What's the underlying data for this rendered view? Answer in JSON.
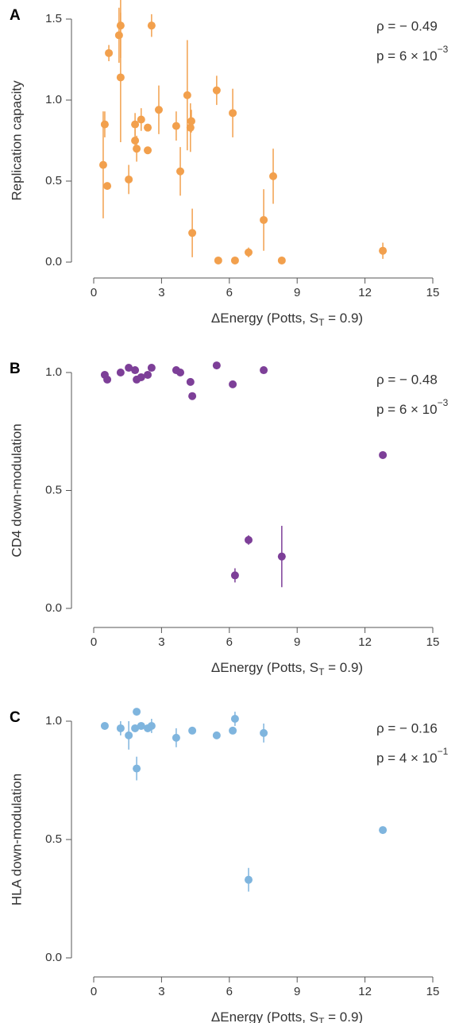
{
  "chart_data": [
    {
      "type": "scatter",
      "panel_label": "A",
      "ylabel": "Replication capacity",
      "xlabel": [
        "ΔEnergy (Potts, S",
        "T",
        " = 0.9)"
      ],
      "annotations": {
        "rho": "ρ = − 0.49",
        "p": "p = 6 × 10",
        "p_exp": "−3"
      },
      "xlim": [
        0,
        15
      ],
      "ylim": [
        0,
        1.5
      ],
      "xticks": [
        0,
        3,
        6,
        9,
        12,
        15
      ],
      "yticks": [
        {
          "value": 0,
          "label": "0.0"
        },
        {
          "value": 0.5,
          "label": "0.5"
        },
        {
          "value": 1,
          "label": "1.0"
        },
        {
          "value": 1.5,
          "label": "1.5"
        }
      ],
      "series": [
        {
          "color": "#f2a04d",
          "x": [
            0.42,
            0.49,
            0.6,
            0.67,
            1.12,
            1.19,
            1.19,
            1.55,
            1.83,
            1.83,
            1.9,
            2.1,
            2.39,
            2.39,
            2.56,
            2.88,
            3.65,
            3.83,
            4.14,
            4.28,
            4.32,
            4.36,
            5.44,
            5.51,
            6.15,
            6.25,
            6.85,
            7.52,
            7.94,
            8.32,
            12.79
          ],
          "y": [
            0.6,
            0.85,
            0.47,
            1.29,
            1.4,
            1.46,
            1.14,
            0.51,
            0.85,
            0.75,
            0.7,
            0.88,
            0.83,
            0.69,
            1.46,
            0.94,
            0.84,
            0.56,
            1.03,
            0.83,
            0.87,
            0.18,
            1.06,
            0.01,
            0.92,
            0.01,
            0.06,
            0.26,
            0.53,
            0.01,
            0.07
          ],
          "error": [
            0.33,
            0.08,
            null,
            0.05,
            0.17,
            0.2,
            0.4,
            0.09,
            0.07,
            0.07,
            0.08,
            0.07,
            null,
            null,
            0.07,
            0.15,
            0.09,
            0.15,
            0.34,
            0.15,
            0.07,
            0.15,
            0.09,
            null,
            0.15,
            null,
            0.03,
            0.19,
            0.17,
            null,
            0.05
          ]
        }
      ]
    },
    {
      "type": "scatter",
      "panel_label": "B",
      "ylabel": "CD4 down-modulation",
      "xlabel": [
        "ΔEnergy (Potts, S",
        "T",
        " = 0.9)"
      ],
      "annotations": {
        "rho": "ρ = − 0.48",
        "p": "p = 6 × 10",
        "p_exp": "−3"
      },
      "xlim": [
        0,
        15
      ],
      "ylim": [
        0,
        1
      ],
      "xticks": [
        0,
        3,
        6,
        9,
        12,
        15
      ],
      "yticks": [
        {
          "value": 0,
          "label": "0.0"
        },
        {
          "value": 0.5,
          "label": "0.5"
        },
        {
          "value": 1,
          "label": "1.0"
        }
      ],
      "series": [
        {
          "color": "#7d3f98",
          "x": [
            0.49,
            0.6,
            1.19,
            1.55,
            1.83,
            1.9,
            2.1,
            2.39,
            2.56,
            3.65,
            3.83,
            4.28,
            4.36,
            5.44,
            6.15,
            6.25,
            6.85,
            7.52,
            8.32,
            12.79
          ],
          "y": [
            0.99,
            0.97,
            1.0,
            1.02,
            1.01,
            0.97,
            0.98,
            0.99,
            1.02,
            1.01,
            1.0,
            0.96,
            0.9,
            1.03,
            0.95,
            0.14,
            0.29,
            1.01,
            0.22,
            0.65
          ],
          "error": [
            null,
            null,
            null,
            null,
            null,
            null,
            null,
            null,
            null,
            null,
            null,
            null,
            null,
            null,
            null,
            0.03,
            0.02,
            null,
            0.13,
            null
          ]
        }
      ]
    },
    {
      "type": "scatter",
      "panel_label": "C",
      "ylabel": "HLA down-modulation",
      "xlabel": [
        "ΔEnergy (Potts, S",
        "T",
        " = 0.9)"
      ],
      "annotations": {
        "rho": "ρ = − 0.16",
        "p": "p = 4 × 10",
        "p_exp": "−1"
      },
      "xlim": [
        0,
        15
      ],
      "ylim": [
        0,
        1
      ],
      "xticks": [
        0,
        3,
        6,
        9,
        12,
        15
      ],
      "yticks": [
        {
          "value": 0,
          "label": "0.0"
        },
        {
          "value": 0.5,
          "label": "0.5"
        },
        {
          "value": 1,
          "label": "1.0"
        }
      ],
      "series": [
        {
          "color": "#7fb5de",
          "x": [
            0.49,
            1.19,
            1.55,
            1.83,
            1.9,
            1.9,
            2.1,
            2.39,
            2.56,
            3.65,
            4.36,
            5.44,
            6.15,
            6.25,
            6.85,
            7.52,
            12.79
          ],
          "y": [
            0.98,
            0.97,
            0.94,
            0.97,
            1.04,
            0.8,
            0.98,
            0.97,
            0.98,
            0.93,
            0.96,
            0.94,
            0.96,
            1.01,
            0.33,
            0.95,
            0.54
          ],
          "error": [
            null,
            0.03,
            0.06,
            null,
            null,
            0.05,
            null,
            null,
            0.03,
            0.04,
            null,
            null,
            null,
            0.03,
            0.05,
            0.04,
            null
          ]
        }
      ]
    }
  ]
}
